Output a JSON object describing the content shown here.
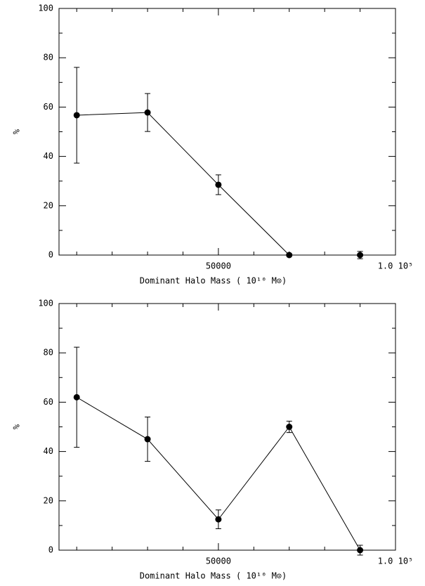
{
  "chart_data": [
    {
      "type": "line",
      "x_label": "Dominant Halo Mass ( 10¹⁰ M⊙)",
      "y_label": "%",
      "x": [
        10000,
        30000,
        50000,
        70000,
        90000
      ],
      "series": [
        {
          "color": "#000000",
          "values": [
            56.7,
            57.8,
            28.5,
            0,
            0
          ],
          "errors": [
            19.4,
            7.7,
            4,
            0.5,
            1.5
          ]
        }
      ],
      "xlim": [
        5000,
        100000
      ],
      "xticks": [
        50000,
        {
          "value": 100000,
          "label": "1.0 10⁵"
        }
      ],
      "xminor": [
        10000,
        20000,
        30000,
        40000,
        60000,
        70000,
        80000,
        90000
      ],
      "ylim": [
        0,
        100
      ],
      "yticks": [
        0,
        20,
        40,
        60,
        80,
        100
      ],
      "yminor": [
        10,
        30,
        50,
        70,
        90
      ]
    },
    {
      "type": "line",
      "x_label": "Dominant Halo Mass ( 10¹⁰ M⊙)",
      "y_label": "%",
      "x": [
        10000,
        30000,
        50000,
        70000,
        90000
      ],
      "series": [
        {
          "color": "#000000",
          "values": [
            62,
            45,
            12.5,
            50,
            0
          ],
          "errors": [
            20.3,
            9,
            3.8,
            2.3,
            2
          ]
        }
      ],
      "xlim": [
        5000,
        100000
      ],
      "xticks": [
        50000,
        {
          "value": 100000,
          "label": "1.0 10⁵"
        }
      ],
      "xminor": [
        10000,
        20000,
        30000,
        40000,
        60000,
        70000,
        80000,
        90000
      ],
      "ylim": [
        0,
        100
      ],
      "yticks": [
        0,
        20,
        40,
        60,
        80,
        100
      ],
      "yminor": [
        10,
        30,
        50,
        70,
        90
      ]
    }
  ]
}
